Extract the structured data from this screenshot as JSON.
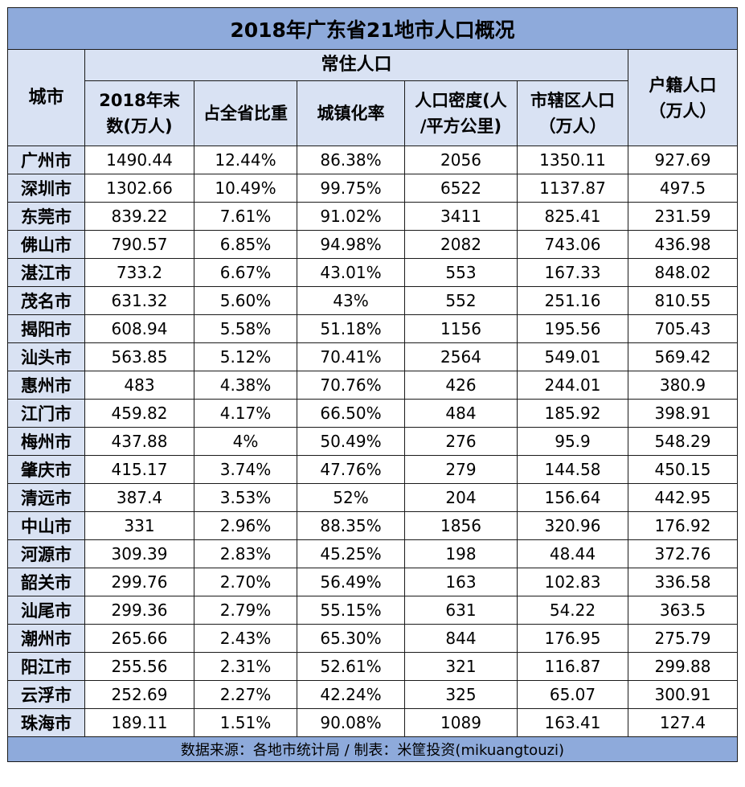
{
  "title": "2018年广东省21地市人口概况",
  "header": {
    "city": "城市",
    "resident_group": "常住人口",
    "registered": [
      "户籍人口",
      "（万人）"
    ],
    "columns": [
      [
        "2018年末",
        "数(万人)"
      ],
      [
        "占全省比重"
      ],
      [
        "城镇化率"
      ],
      [
        "人口密度(人",
        "/平方公里)"
      ],
      [
        "市辖区人口",
        "（万人）"
      ]
    ]
  },
  "rows": [
    {
      "city": "广州市",
      "pop": "1490.44",
      "share": "12.44%",
      "urban": "86.38%",
      "density": "2056",
      "district": "1350.11",
      "registered": "927.69"
    },
    {
      "city": "深圳市",
      "pop": "1302.66",
      "share": "10.49%",
      "urban": "99.75%",
      "density": "6522",
      "district": "1137.87",
      "registered": "497.5"
    },
    {
      "city": "东莞市",
      "pop": "839.22",
      "share": "7.61%",
      "urban": "91.02%",
      "density": "3411",
      "district": "825.41",
      "registered": "231.59"
    },
    {
      "city": "佛山市",
      "pop": "790.57",
      "share": "6.85%",
      "urban": "94.98%",
      "density": "2082",
      "district": "743.06",
      "registered": "436.98"
    },
    {
      "city": "湛江市",
      "pop": "733.2",
      "share": "6.67%",
      "urban": "43.01%",
      "density": "553",
      "district": "167.33",
      "registered": "848.02"
    },
    {
      "city": "茂名市",
      "pop": "631.32",
      "share": "5.60%",
      "urban": "43%",
      "density": "552",
      "district": "251.16",
      "registered": "810.55"
    },
    {
      "city": "揭阳市",
      "pop": "608.94",
      "share": "5.58%",
      "urban": "51.18%",
      "density": "1156",
      "district": "195.56",
      "registered": "705.43"
    },
    {
      "city": "汕头市",
      "pop": "563.85",
      "share": "5.12%",
      "urban": "70.41%",
      "density": "2564",
      "district": "549.01",
      "registered": "569.42"
    },
    {
      "city": "惠州市",
      "pop": "483",
      "share": "4.38%",
      "urban": "70.76%",
      "density": "426",
      "district": "244.01",
      "registered": "380.9"
    },
    {
      "city": "江门市",
      "pop": "459.82",
      "share": "4.17%",
      "urban": "66.50%",
      "density": "484",
      "district": "185.92",
      "registered": "398.91"
    },
    {
      "city": "梅州市",
      "pop": "437.88",
      "share": "4%",
      "urban": "50.49%",
      "density": "276",
      "district": "95.9",
      "registered": "548.29"
    },
    {
      "city": "肇庆市",
      "pop": "415.17",
      "share": "3.74%",
      "urban": "47.76%",
      "density": "279",
      "district": "144.58",
      "registered": "450.15"
    },
    {
      "city": "清远市",
      "pop": "387.4",
      "share": "3.53%",
      "urban": "52%",
      "density": "204",
      "district": "156.64",
      "registered": "442.95"
    },
    {
      "city": "中山市",
      "pop": "331",
      "share": "2.96%",
      "urban": "88.35%",
      "density": "1856",
      "district": "320.96",
      "registered": "176.92"
    },
    {
      "city": "河源市",
      "pop": "309.39",
      "share": "2.83%",
      "urban": "45.25%",
      "density": "198",
      "district": "48.44",
      "registered": "372.76"
    },
    {
      "city": "韶关市",
      "pop": "299.76",
      "share": "2.70%",
      "urban": "56.49%",
      "density": "163",
      "district": "102.83",
      "registered": "336.58"
    },
    {
      "city": "汕尾市",
      "pop": "299.36",
      "share": "2.79%",
      "urban": "55.15%",
      "density": "631",
      "district": "54.22",
      "registered": "363.5"
    },
    {
      "city": "潮州市",
      "pop": "265.66",
      "share": "2.43%",
      "urban": "65.30%",
      "density": "844",
      "district": "176.95",
      "registered": "275.79"
    },
    {
      "city": "阳江市",
      "pop": "255.56",
      "share": "2.31%",
      "urban": "52.61%",
      "density": "321",
      "district": "116.87",
      "registered": "299.88"
    },
    {
      "city": "云浮市",
      "pop": "252.69",
      "share": "2.27%",
      "urban": "42.24%",
      "density": "325",
      "district": "65.07",
      "registered": "300.91"
    },
    {
      "city": "珠海市",
      "pop": "189.11",
      "share": "1.51%",
      "urban": "90.08%",
      "density": "1089",
      "district": "163.41",
      "registered": "127.4"
    }
  ],
  "footer": "数据来源：各地市统计局 / 制表：米筐投资(mikuangtouzi)"
}
